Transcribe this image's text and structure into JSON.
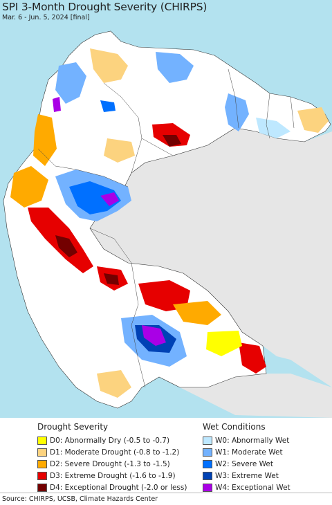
{
  "header": {
    "title": "SPI 3-Month Drought Severity (CHIRPS)",
    "subtitle": "Mar. 6 - Jun. 5, 2024 [final]"
  },
  "legend": {
    "drought": {
      "heading": "Drought Severity",
      "items": [
        {
          "label": "D0: Abnormally Dry (-0.5 to -0.7)",
          "color": "#ffff00"
        },
        {
          "label": "D1: Moderate Drought (-0.8 to -1.2)",
          "color": "#fcd37f"
        },
        {
          "label": "D2: Severe Drought (-1.3 to -1.5)",
          "color": "#ffaa00"
        },
        {
          "label": "D3: Extreme Drought (-1.6 to -1.9)",
          "color": "#e60000"
        },
        {
          "label": "D4: Exceptional Drought (-2.0 or less)",
          "color": "#730000"
        }
      ]
    },
    "wet": {
      "heading": "Wet Conditions",
      "items": [
        {
          "label": "W0: Abnormally Wet",
          "color": "#bee8ff"
        },
        {
          "label": "W1: Moderate Wet",
          "color": "#73b2ff"
        },
        {
          "label": "W2: Severe Wet",
          "color": "#0070ff"
        },
        {
          "label": "W3: Extreme Wet",
          "color": "#0042b5"
        },
        {
          "label": "W4: Exceptional Wet",
          "color": "#a900e6"
        }
      ]
    }
  },
  "footer": {
    "source": "Source: CHIRPS, UCSB, Climate Hazards Center"
  },
  "map": {
    "ocean_color": "#b3e2ef",
    "land_color": "#ffffff",
    "outside_region_color": "#e6e6e6"
  }
}
